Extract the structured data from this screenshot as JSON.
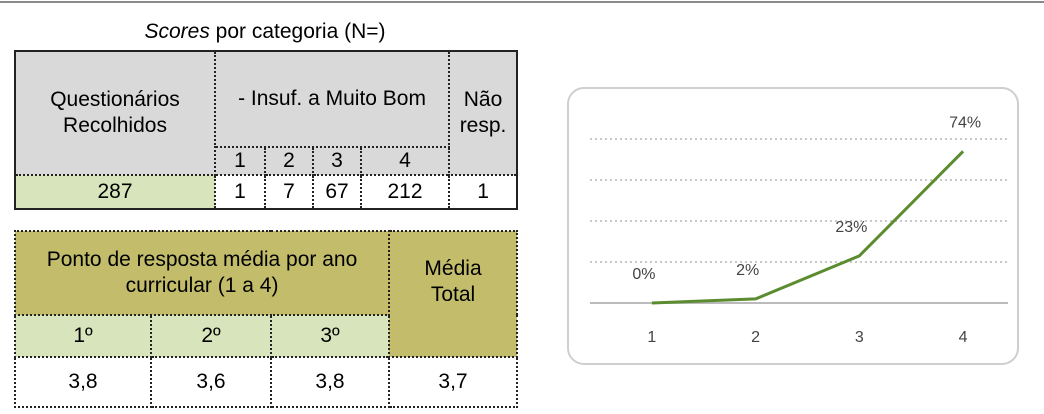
{
  "table1": {
    "caption_italic": "Scores",
    "caption_rest": " por categoria (N=)",
    "header": {
      "collected": "Questionários Recolhidos",
      "scale": "- Insuf. a Muito Bom",
      "no_response": "Não resp.",
      "levels": [
        "1",
        "2",
        "3",
        "4"
      ]
    },
    "row": [
      "287",
      "1",
      "7",
      "67",
      "212",
      "1"
    ]
  },
  "table2": {
    "header": "Ponto de resposta média por ano curricular (1 a 4)",
    "total": "Média Total",
    "years": [
      "1º",
      "2º",
      "3º"
    ],
    "row": [
      "3,8",
      "3,6",
      "3,8",
      "3,7"
    ]
  },
  "chart_data": {
    "type": "line",
    "categories": [
      "1",
      "2",
      "3",
      "4"
    ],
    "series": [
      {
        "name": null,
        "color": "#5b8c2f",
        "values": [
          0,
          2,
          23,
          74
        ],
        "value_labels": [
          "0%",
          "2%",
          "23%",
          "74%"
        ]
      }
    ],
    "ylim": [
      0,
      80
    ],
    "yticks": [
      0,
      20,
      40,
      60,
      80
    ],
    "grid": true
  }
}
